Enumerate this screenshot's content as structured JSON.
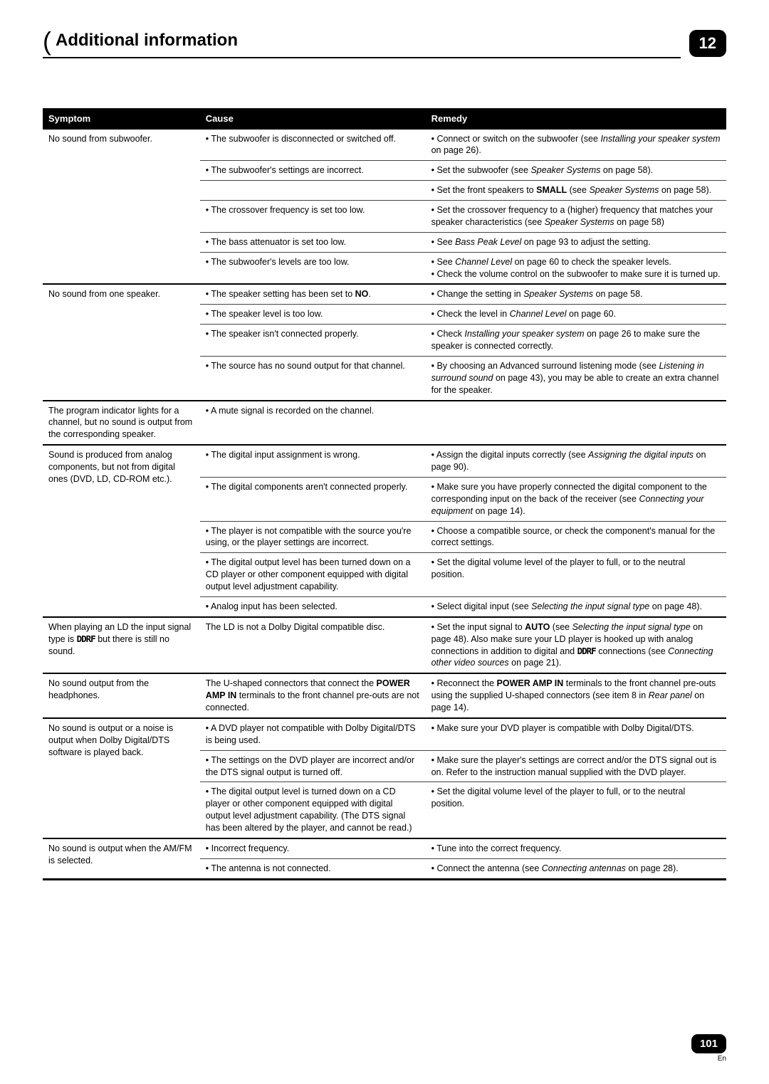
{
  "header": {
    "section_title": "Additional information",
    "chapter_number": "12"
  },
  "footer": {
    "page_number": "101",
    "language": "En"
  },
  "table": {
    "columns": [
      "Symptom",
      "Cause",
      "Remedy"
    ],
    "colors": {
      "header_bg": "#000000",
      "header_fg": "#ffffff",
      "row_border": "#444444",
      "group_border": "#000000"
    },
    "font_size_pt": 9.5,
    "groups": [
      {
        "symptom": "No sound from subwoofer.",
        "rows": [
          {
            "cause": "• The subwoofer is disconnected or switched off.",
            "remedy": "• Connect or switch on the subwoofer (see <i>Installing your speaker system</i> on page 26)."
          },
          {
            "cause": "• The subwoofer's settings are incorrect.",
            "remedy": "• Set the subwoofer (see <i>Speaker Systems</i> on page 58)."
          },
          {
            "cause": "",
            "remedy": "• Set the front speakers to <b>SMALL</b> (see <i>Speaker Systems</i> on page 58)."
          },
          {
            "cause": "• The crossover frequency is set too low.",
            "remedy": "• Set the crossover frequency to a (higher) frequency that matches your speaker characteristics (see <i>Speaker Systems</i> on page 58)"
          },
          {
            "cause": "• The bass attenuator is set too low.",
            "remedy": "• See <i>Bass Peak Level</i> on page 93 to adjust the setting."
          },
          {
            "cause": "• The subwoofer's levels are too low.",
            "remedy": "• See <i>Channel Level</i> on page 60 to check the speaker levels.<br>• Check the volume control on the subwoofer to make sure it is turned up."
          }
        ]
      },
      {
        "symptom": "No sound from one speaker.",
        "rows": [
          {
            "cause": "• The speaker setting has been set to <b>NO</b>.",
            "remedy": "• Change the setting in <i>Speaker Systems</i> on page 58."
          },
          {
            "cause": "• The speaker level is too low.",
            "remedy": "• Check the level in <i>Channel Level</i> on page 60."
          },
          {
            "cause": "• The speaker isn't connected properly.",
            "remedy": "• Check <i>Installing your speaker system</i> on page 26 to make sure the speaker is connected correctly."
          },
          {
            "cause": "• The source has no sound output for that channel.",
            "remedy": "• By choosing an Advanced surround listening mode (see <i>Listening in surround sound</i> on page 43), you may be able to create an extra channel for the speaker."
          }
        ]
      },
      {
        "symptom": "The program indicator lights for a channel, but no sound is output from the corresponding speaker.",
        "rows": [
          {
            "cause": "• A mute signal is recorded on the channel.",
            "remedy": ""
          }
        ]
      },
      {
        "symptom": "Sound is produced from analog components, but not from digital ones (DVD, LD, CD-ROM etc.).",
        "rows": [
          {
            "cause": "• The digital input assignment is wrong.",
            "remedy": "• Assign the digital inputs correctly (see <i>Assigning the digital inputs</i> on page 90)."
          },
          {
            "cause": "• The digital components aren't connected properly.",
            "remedy": "• Make sure you have properly connected the digital component to the corresponding input on the back of the receiver (see <i>Connecting your equipment</i> on page 14)."
          },
          {
            "cause": "• The player is not compatible with the source you're using, or the player settings are incorrect.",
            "remedy": "• Choose a compatible source, or check the component's manual for the correct settings."
          },
          {
            "cause": "• The digital output level has been turned down on a CD player or other component equipped with digital output level adjustment capability.",
            "remedy": "• Set the digital volume level of the player to full, or to the neutral position."
          },
          {
            "cause": "• Analog input has been selected.",
            "remedy": "• Select digital input (see <i>Selecting the input signal type</i> on page 48)."
          }
        ]
      },
      {
        "symptom": "When playing an LD the input signal type is <span class='ddrf'>DDRF</span> but there is still no sound.",
        "rows": [
          {
            "cause": "The LD is not a Dolby Digital compatible disc.",
            "remedy": "• Set the input signal to <b>AUTO</b> (see <i>Selecting the input signal type</i> on page 48). Also make sure your LD player is hooked up with analog connections in addition to digital and <span class='ddrf'>DDRF</span> connections (see <i>Connecting other video sources</i> on page 21)."
          }
        ]
      },
      {
        "symptom": "No sound output from the headphones.",
        "rows": [
          {
            "cause": "The U-shaped connectors that connect the <b>POWER AMP IN</b> terminals to the front channel pre-outs are not connected.",
            "remedy": "• Reconnect the <b>POWER AMP IN</b> terminals to the front channel pre-outs using the supplied U-shaped connectors (see item 8 in <i>Rear panel</i> on page 14)."
          }
        ]
      },
      {
        "symptom": "No sound is output or a noise is output when Dolby Digital/DTS software is played back.",
        "rows": [
          {
            "cause": "• A DVD player not compatible with Dolby Digital/DTS is being used.",
            "remedy": "• Make sure your DVD player is compatible with Dolby Digital/DTS."
          },
          {
            "cause": "• The settings on the DVD player are incorrect and/or the DTS signal output is turned off.",
            "remedy": "• Make sure the player's settings are correct and/or the DTS signal out is on. Refer to the instruction manual supplied with the DVD player."
          },
          {
            "cause": "• The digital output level is turned down on a CD player or other component equipped with digital output level adjustment capability. (The DTS signal has been altered by the player, and cannot be read.)",
            "remedy": "• Set the digital volume level of the player to full, or to the neutral position."
          }
        ]
      },
      {
        "symptom": "No sound is output when the AM/FM is selected.",
        "rows": [
          {
            "cause": "• Incorrect frequency.",
            "remedy": "• Tune into the correct frequency."
          },
          {
            "cause": "• The antenna is not connected.",
            "remedy": "• Connect the antenna (see <i>Connecting antennas</i> on page 28)."
          }
        ]
      }
    ]
  }
}
